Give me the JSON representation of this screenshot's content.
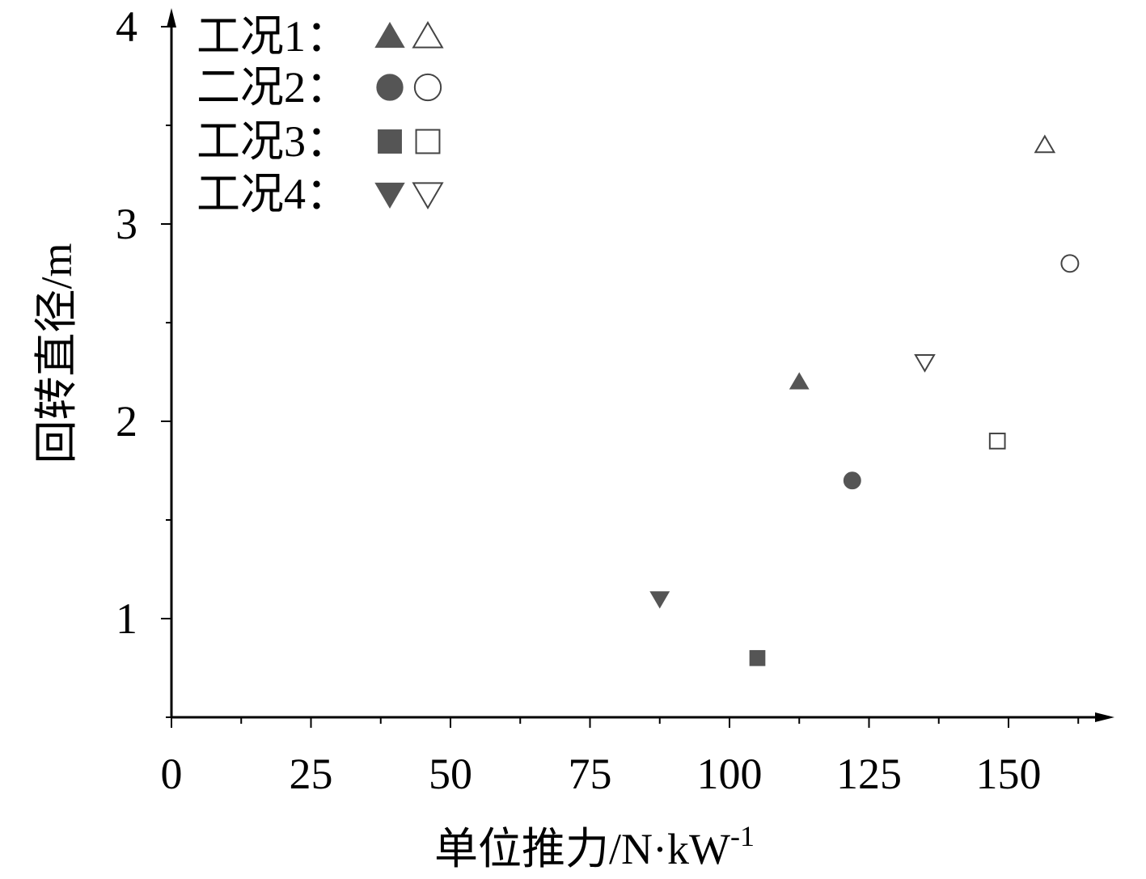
{
  "chart_data": {
    "type": "scatter",
    "title": "",
    "xlabel": "单位推力/N·kW",
    "xlabel_sup": "-1",
    "ylabel": "回转直径/m",
    "xlim": [
      0,
      168
    ],
    "ylim": [
      0.5,
      4.05
    ],
    "x_ticks": [
      0,
      25,
      50,
      75,
      100,
      125,
      150
    ],
    "x_tick_labels": [
      "0",
      "25",
      "50",
      "75",
      "100",
      "125",
      "150"
    ],
    "y_ticks": [
      1,
      2,
      3,
      4
    ],
    "y_tick_labels": [
      "1",
      "2",
      "3",
      "4"
    ],
    "grid": false,
    "legend_position": "top-left",
    "marker_fill_color": "#555555",
    "marker_stroke_color": "#444444",
    "series": [
      {
        "name": "工况1：",
        "marker": "triangle-up",
        "points": [
          {
            "x": 112.5,
            "y": 2.2,
            "filled": true
          },
          {
            "x": 156.5,
            "y": 3.4,
            "filled": false
          }
        ]
      },
      {
        "name": "二况2：",
        "marker": "circle",
        "points": [
          {
            "x": 122,
            "y": 1.7,
            "filled": true
          },
          {
            "x": 161,
            "y": 2.8,
            "filled": false
          }
        ]
      },
      {
        "name": "工况3：",
        "marker": "square",
        "points": [
          {
            "x": 105,
            "y": 0.8,
            "filled": true
          },
          {
            "x": 148,
            "y": 1.9,
            "filled": false
          }
        ]
      },
      {
        "name": "工况4：",
        "marker": "triangle-down",
        "points": [
          {
            "x": 87.5,
            "y": 1.1,
            "filled": true
          },
          {
            "x": 135,
            "y": 2.3,
            "filled": false
          }
        ]
      }
    ]
  }
}
